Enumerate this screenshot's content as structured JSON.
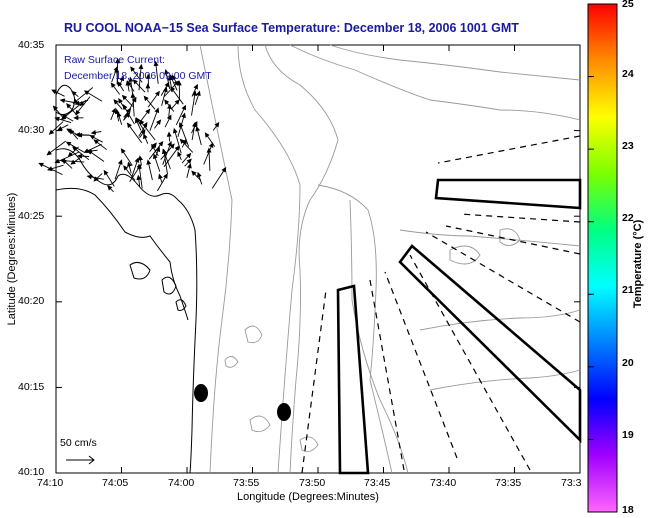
{
  "title": "RU COOL  NOAA−15  Sea Surface Temperature:  December 18, 2006 1001 GMT",
  "current_legend": {
    "line1": "Raw Surface Current:",
    "line2": "December 18, 2006 09:00 GMT"
  },
  "axes": {
    "xlabel": "Longitude (Degrees:Minutes)",
    "ylabel": "Latitude (Degrees:Minutes)",
    "x_ticks": [
      "74:10",
      "74:05",
      "74:00",
      "73:55",
      "73:50",
      "73:45",
      "73:40",
      "73:35",
      "73:3"
    ],
    "y_ticks": [
      "40:35",
      "40:30",
      "40:25",
      "40:20",
      "40:15",
      "40:10"
    ]
  },
  "scale_bar": {
    "label": "50 cm/s"
  },
  "colorbar": {
    "title": "Temperature (°C)",
    "ticks": [
      "25",
      "24",
      "23",
      "22",
      "21",
      "20",
      "19",
      "18"
    ],
    "range": [
      18,
      25
    ],
    "colors": [
      "#ff0000",
      "#ff8c00",
      "#ffff00",
      "#7cff00",
      "#00ff80",
      "#00ffff",
      "#0080ff",
      "#0000ff",
      "#a000ff",
      "#ff66ff"
    ]
  },
  "map_colors": {
    "ink": "#000000",
    "contour": "#999999",
    "title_text": "#1a1aa0"
  }
}
